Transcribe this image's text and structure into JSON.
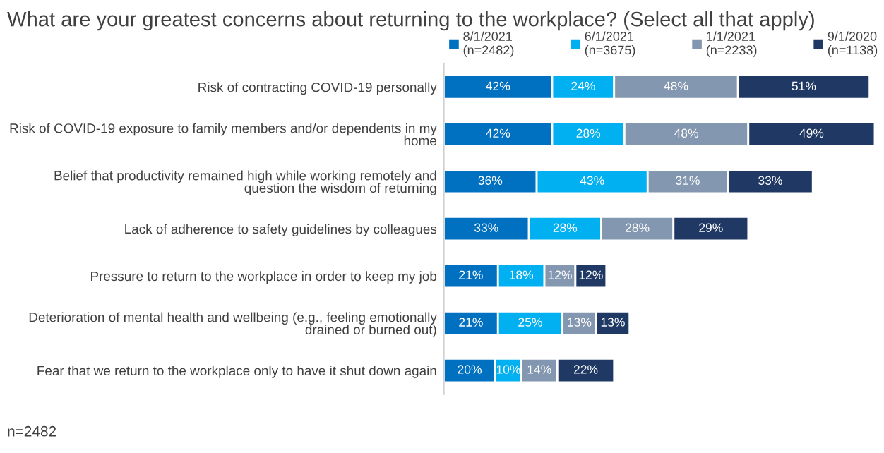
{
  "chart_data": {
    "type": "bar",
    "orientation": "horizontal",
    "stacked": true,
    "title": "What are your greatest concerns about returning to the workplace? (Select all that apply)",
    "categories": [
      "Risk of contracting COVID-19 personally",
      "Risk of COVID-19 exposure to family members and/or dependents in my home",
      "Belief that productivity remained high while working remotely and question the wisdom of returning",
      "Lack of adherence to safety guidelines by colleagues",
      "Pressure to return to the workplace in order to keep my job",
      "Deterioration of mental health and wellbeing (e.g., feeling emotionally drained or burned out)",
      "Fear that we return to the workplace only to have it shut down again"
    ],
    "series": [
      {
        "name": "8/1/2021\n(n=2482)",
        "color": "#0070c0",
        "values": [
          42,
          42,
          36,
          33,
          21,
          21,
          20
        ],
        "value_labels": [
          "42%",
          "42%",
          "36%",
          "33%",
          "21%",
          "21%",
          "20%"
        ]
      },
      {
        "name": "6/1/2021\n(n=3675)",
        "color": "#00b0f0",
        "values": [
          24,
          28,
          43,
          28,
          18,
          25,
          10
        ],
        "value_labels": [
          "24%",
          "28%",
          "43%",
          "28%",
          "18%",
          "25%",
          "10%"
        ]
      },
      {
        "name": "1/1/2021\n(n=2233)",
        "color": "#8497b0",
        "values": [
          48,
          48,
          31,
          28,
          12,
          13,
          14
        ],
        "value_labels": [
          "48%",
          "48%",
          "31%",
          "28%",
          "12%",
          "13%",
          "14%"
        ]
      },
      {
        "name": "9/1/2020\n(n=1138)",
        "color": "#203864",
        "values": [
          51,
          49,
          33,
          29,
          12,
          13,
          22
        ],
        "value_labels": [
          "51%",
          "49%",
          "33%",
          "29%",
          "12%",
          "13%",
          "22%"
        ]
      }
    ],
    "tick_labels": "y",
    "legend": "top",
    "grid": false,
    "annotations": [
      "n=2482"
    ]
  }
}
